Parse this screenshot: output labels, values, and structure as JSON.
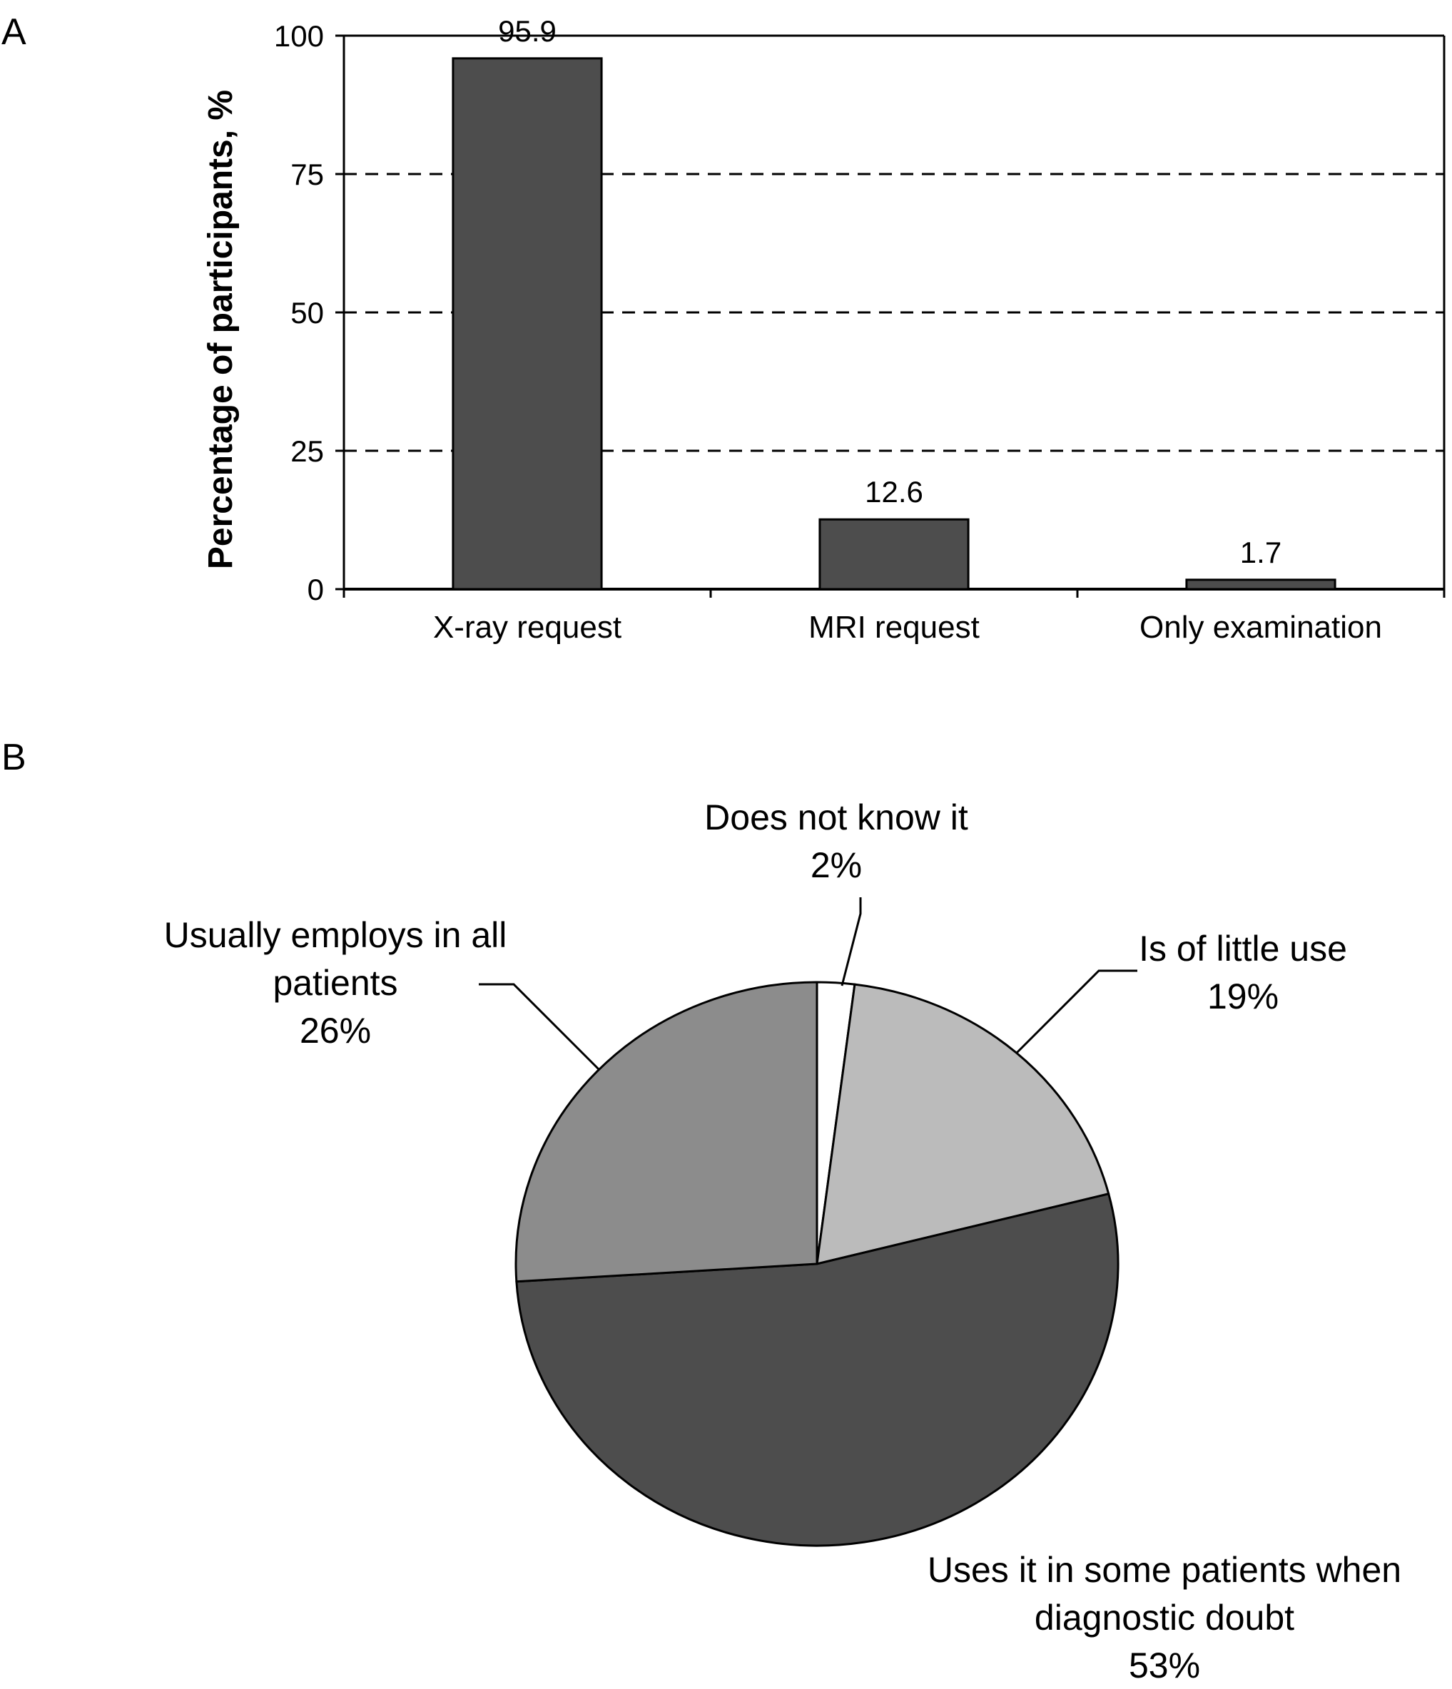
{
  "panels": {
    "a": "A",
    "b": "B"
  },
  "chart_data": [
    {
      "type": "bar",
      "panel": "A",
      "categories": [
        "X-ray request",
        "MRI request",
        "Only examination"
      ],
      "values": [
        95.9,
        12.6,
        1.7
      ],
      "data_labels": [
        "95.9",
        "12.6",
        "1.7"
      ],
      "ylabel": "Percentage of participants, %",
      "xlabel": "",
      "ylim": [
        0,
        100
      ],
      "yticks": [
        "0",
        "25",
        "50",
        "75",
        "100"
      ],
      "grid": "dashed horizontal at 25, 50, 75",
      "bar_color": "#4d4d4d"
    },
    {
      "type": "pie",
      "panel": "B",
      "slices": [
        {
          "label": [
            "Does not know it"
          ],
          "pct_label": "2%",
          "value": 2,
          "color": "#ffffff"
        },
        {
          "label": [
            "Is of little use"
          ],
          "pct_label": "19%",
          "value": 19,
          "color": "#bbbbbb"
        },
        {
          "label": [
            "Uses it in some patients when",
            "diagnostic doubt"
          ],
          "pct_label": "53%",
          "value": 53,
          "color": "#4d4d4d"
        },
        {
          "label": [
            "Usually employs in all",
            "patients"
          ],
          "pct_label": "26%",
          "value": 26,
          "color": "#8c8c8c"
        }
      ],
      "start": "12 o'clock, clockwise"
    }
  ]
}
